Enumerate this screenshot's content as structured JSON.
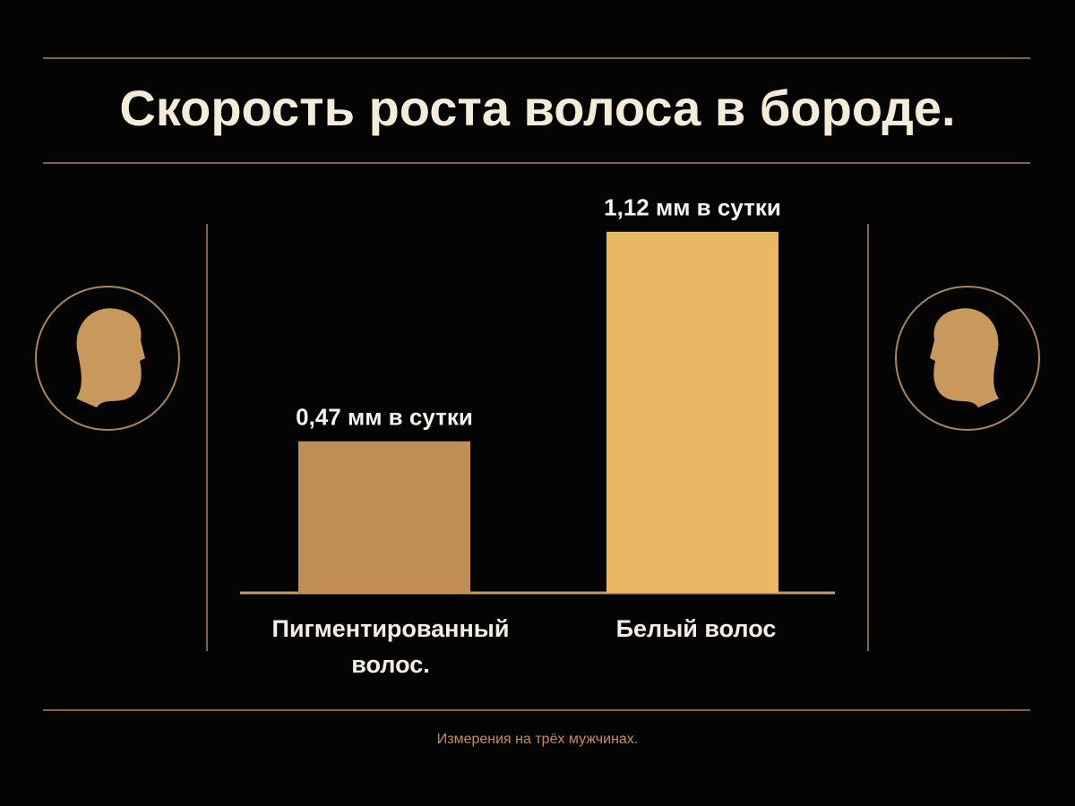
{
  "chart_data": {
    "type": "bar",
    "title": "Скорость роста волоса в бороде.",
    "categories": [
      "Пигментированный волос.",
      "Белый волос"
    ],
    "values": [
      0.47,
      1.12
    ],
    "value_labels": [
      "0,47 мм в сутки",
      "1,12 мм в сутки"
    ],
    "colors": [
      "#c18f55",
      "#e8b865"
    ],
    "note": "Измерения на трёх мужчинах."
  }
}
